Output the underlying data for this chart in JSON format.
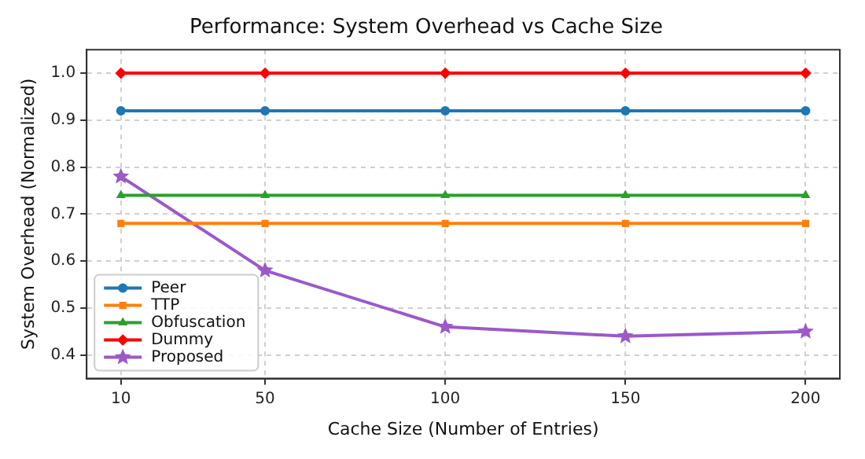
{
  "chart_data": {
    "type": "line",
    "title": "Performance: System Overhead vs Cache Size",
    "xlabel": "Cache Size (Number of Entries)",
    "ylabel": "System Overhead (Normalized)",
    "x": [
      10,
      50,
      100,
      150,
      200
    ],
    "xlim": [
      0.5,
      209.5
    ],
    "xticks": [
      10,
      50,
      100,
      150,
      200
    ],
    "ylim": [
      0.35,
      1.05
    ],
    "yticks": [
      0.4,
      0.5,
      0.6,
      0.7,
      0.8,
      0.9,
      {
        "value": 1,
        "label": "1.0"
      }
    ],
    "grid": true,
    "legend": "bottom left",
    "line_style": "solid",
    "series": [
      {
        "name": "Peer",
        "color": "#1f77b4",
        "marker": "circle",
        "values": [
          0.92,
          0.92,
          0.92,
          0.92,
          0.92
        ]
      },
      {
        "name": "TTP",
        "color": "#ff7f0e",
        "marker": "square",
        "values": [
          0.68,
          0.68,
          0.68,
          0.68,
          0.68
        ]
      },
      {
        "name": "Obfuscation",
        "color": "#2ca02c",
        "marker": "triangle",
        "values": [
          0.74,
          0.74,
          0.74,
          0.74,
          0.74
        ]
      },
      {
        "name": "Dummy",
        "color": "#ff0000",
        "marker": "diamond",
        "values": [
          1.0,
          1.0,
          1.0,
          1.0,
          1.0
        ]
      },
      {
        "name": "Proposed",
        "color": "#9b59c9",
        "marker": "star",
        "values": [
          0.78,
          0.58,
          0.46,
          0.44,
          0.45
        ]
      }
    ]
  }
}
